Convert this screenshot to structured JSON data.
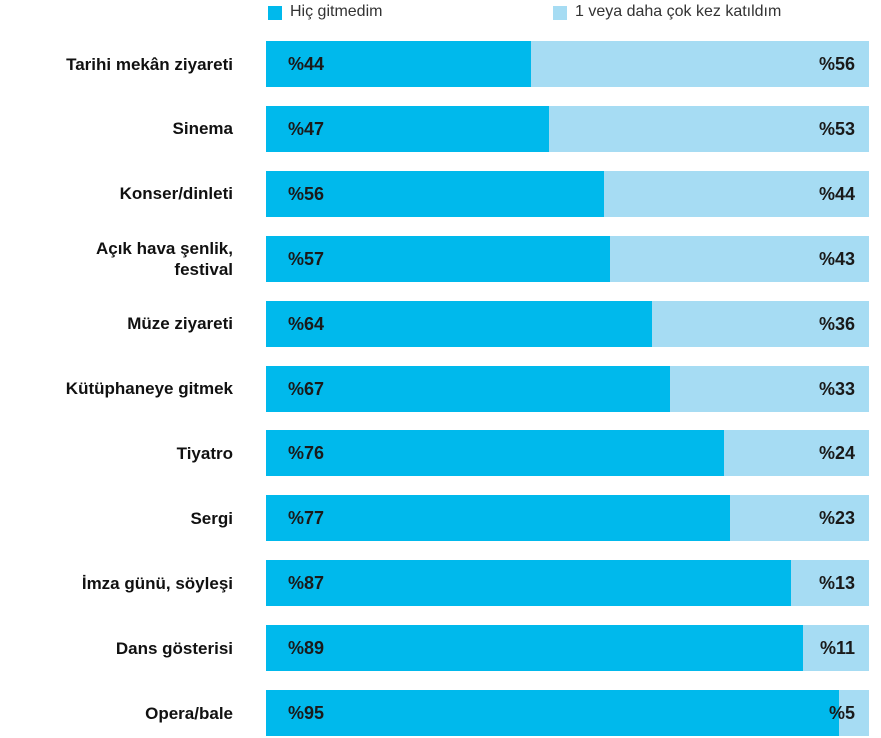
{
  "chart_data": {
    "type": "stacked_bar_horizontal",
    "categories": [
      "Tarihi mekân ziyareti",
      "Sinema",
      "Konser/dinleti",
      "Açık hava şenlik,\nfestival",
      "Müze ziyareti",
      "Kütüphaneye gitmek",
      "Tiyatro",
      "Sergi",
      "İmza günü, söyleşi",
      "Dans gösterisi",
      "Opera/bale"
    ],
    "xlim": [
      0,
      100
    ],
    "legend": "top",
    "series": [
      {
        "name": "Hiç gitmedim",
        "color": "#00b9ec",
        "values": [
          44,
          47,
          56,
          57,
          64,
          67,
          76,
          77,
          87,
          89,
          95
        ],
        "value_labels": [
          "%44",
          "%47",
          "%56",
          "%57",
          "%64",
          "%67",
          "%76",
          "%77",
          "%87",
          "%89",
          "%95"
        ]
      },
      {
        "name": "1 veya daha çok kez katıldım",
        "color": "#a6dcf3",
        "values": [
          56,
          53,
          44,
          43,
          36,
          33,
          24,
          23,
          13,
          11,
          5
        ],
        "value_labels": [
          "%56",
          "%53",
          "%44",
          "%43",
          "%36",
          "%33",
          "%24",
          "%23",
          "%13",
          "%11",
          "%5"
        ]
      }
    ]
  }
}
